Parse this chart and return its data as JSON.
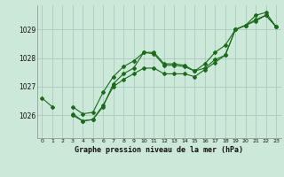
{
  "title": "Graphe pression niveau de la mer (hPa)",
  "background_color": "#cce8d8",
  "grid_color": "#aacfc0",
  "line_color": "#1a6b1a",
  "x_ticks": [
    0,
    1,
    2,
    3,
    4,
    5,
    6,
    7,
    8,
    9,
    10,
    11,
    12,
    13,
    14,
    15,
    16,
    17,
    18,
    19,
    20,
    21,
    22,
    23
  ],
  "y_ticks": [
    1026,
    1027,
    1028,
    1029
  ],
  "ylim": [
    1025.2,
    1029.85
  ],
  "xlim": [
    -0.5,
    23.5
  ],
  "series1": [
    1026.6,
    1026.3,
    null,
    1026.0,
    1025.8,
    1025.85,
    1026.3,
    1027.1,
    1027.45,
    1027.65,
    1028.2,
    1028.15,
    1027.75,
    1027.75,
    1027.7,
    1027.55,
    1027.65,
    1027.95,
    1028.1,
    1029.0,
    1029.15,
    1029.35,
    1029.5,
    1029.1
  ],
  "series2": [
    null,
    null,
    null,
    1026.3,
    1026.05,
    1026.1,
    1026.8,
    1027.35,
    1027.7,
    1027.9,
    1028.2,
    1028.2,
    1027.8,
    1027.8,
    1027.75,
    1027.55,
    1027.8,
    1028.2,
    1028.45,
    1029.0,
    1029.15,
    1029.5,
    1029.6,
    1029.1
  ],
  "series3": [
    null,
    null,
    null,
    1026.05,
    1025.8,
    1025.85,
    1026.35,
    1027.0,
    1027.25,
    1027.45,
    1027.65,
    1027.65,
    1027.45,
    1027.45,
    1027.45,
    1027.35,
    1027.6,
    1027.85,
    1028.1,
    1029.0,
    1029.15,
    1029.3,
    1029.5,
    1029.1
  ]
}
